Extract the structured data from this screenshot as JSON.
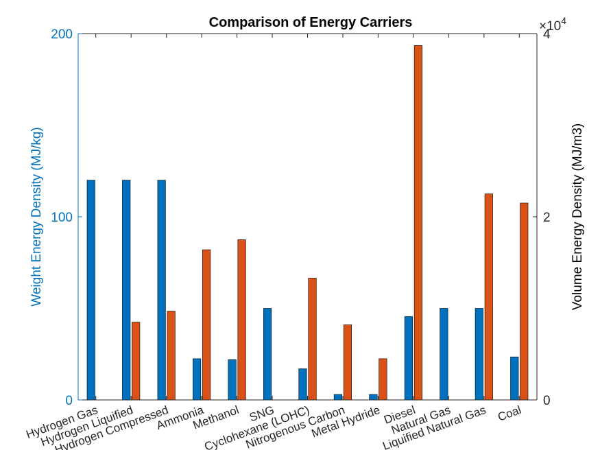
{
  "chart_data": {
    "type": "bar",
    "title": "Comparison of Energy Carriers",
    "categories": [
      "Hydrogen Gas",
      "Hydrogen Liquified",
      "Hydrogen Compressed",
      "Ammonia",
      "Methanol",
      "SNG",
      "Cyclohexane (LOHC)",
      "Nitrogenous Carbon",
      "Metal Hydride",
      "Diesel",
      "Natural Gas",
      "Liquified Natural Gas",
      "Coal"
    ],
    "series": [
      {
        "name": "",
        "axis": "left",
        "color": "#0072BD",
        "values": [
          120,
          120,
          120,
          22.5,
          22,
          50,
          17,
          3,
          3,
          45.5,
          50,
          50,
          23.5
        ]
      },
      {
        "name": "",
        "axis": "right",
        "color": "#D95319",
        "values": [
          10,
          8500,
          9700,
          16400,
          17500,
          10,
          13300,
          8200,
          4500,
          38700,
          10,
          22500,
          21500
        ]
      }
    ],
    "ylabel": "Weight Energy Density (MJ/kg)",
    "ylim": [
      0,
      200
    ],
    "yticks": [
      "0",
      "100",
      "200"
    ],
    "ylabel_right": "Volume Energy Density (MJ/m3)",
    "ylim_right": [
      0,
      40000
    ],
    "yticks_right": [
      "0",
      "2",
      "4"
    ],
    "exponent_label": "×10",
    "exponent_power": "4",
    "grid": false,
    "legend": "none",
    "left_axis_color": "#0072BD",
    "right_axis_color": "#262626"
  }
}
